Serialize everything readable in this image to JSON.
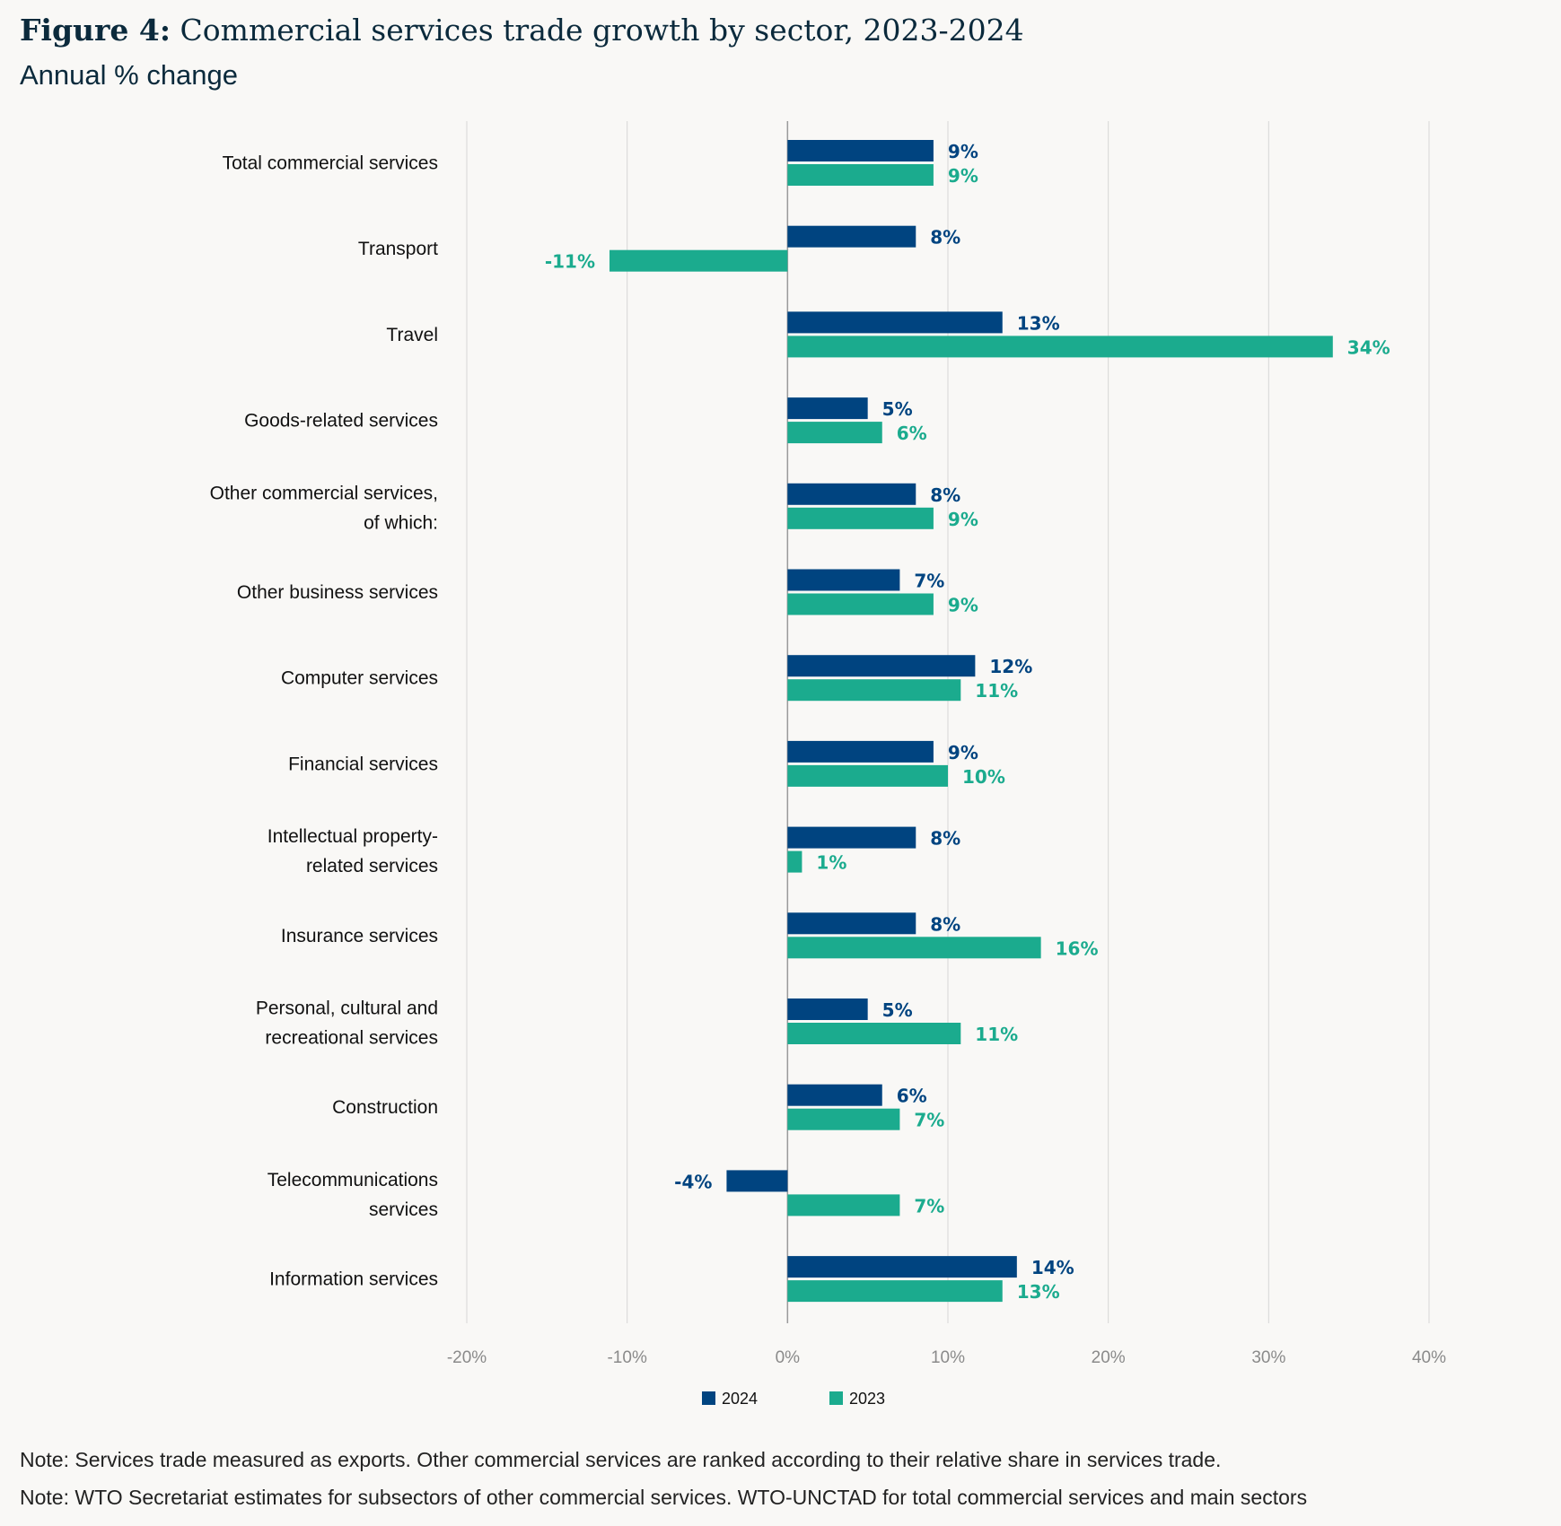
{
  "header": {
    "title_bold": "Figure 4:",
    "title_rest": " Commercial services trade growth by sector, 2023-2024",
    "subtitle": "Annual % change"
  },
  "colors": {
    "series_2024": "#004480",
    "series_2023": "#1bab8e",
    "grid": "#d6d6d6",
    "axis": "#9a9a9a"
  },
  "chart_data": {
    "type": "bar",
    "orientation": "horizontal",
    "title": "Commercial services trade growth by sector, 2023-2024",
    "subtitle": "Annual % change",
    "xlim": [
      -20,
      40
    ],
    "xticks": [
      -20,
      -10,
      0,
      10,
      20,
      30,
      40
    ],
    "xtick_labels": [
      "-20%",
      "-10%",
      "0%",
      "10%",
      "20%",
      "30%",
      "40%"
    ],
    "grid": true,
    "legend_position": "bottom-center",
    "categories": [
      [
        "Total commercial services"
      ],
      [
        "Transport"
      ],
      [
        "Travel"
      ],
      [
        "Goods-related services"
      ],
      [
        "Other commercial services,",
        "of which:"
      ],
      [
        "Other business services"
      ],
      [
        "Computer services"
      ],
      [
        "Financial services"
      ],
      [
        "Intellectual property-",
        "related services"
      ],
      [
        "Insurance services"
      ],
      [
        "Personal, cultural and",
        "recreational services"
      ],
      [
        "Construction"
      ],
      [
        "Telecommunications",
        "services"
      ],
      [
        "Information services"
      ]
    ],
    "series": [
      {
        "name": "2024",
        "values": [
          9.1,
          8.0,
          13.4,
          5.0,
          8.0,
          7.0,
          11.7,
          9.1,
          8.0,
          8.0,
          5.0,
          5.9,
          -3.8,
          14.3
        ],
        "labels": [
          "9%",
          "8%",
          "13%",
          "5%",
          "8%",
          "7%",
          "12%",
          "9%",
          "8%",
          "8%",
          "5%",
          "6%",
          "-4%",
          "14%"
        ]
      },
      {
        "name": "2023",
        "values": [
          9.1,
          -11.1,
          34.0,
          5.9,
          9.1,
          9.1,
          10.8,
          10.0,
          0.9,
          15.8,
          10.8,
          7.0,
          7.0,
          13.4
        ],
        "labels": [
          "9%",
          "-11%",
          "34%",
          "6%",
          "9%",
          "9%",
          "11%",
          "10%",
          "1%",
          "16%",
          "11%",
          "7%",
          "7%",
          "13%"
        ]
      }
    ]
  },
  "notes": [
    "Note: Services trade measured as exports. Other commercial services are ranked according to their relative share in services trade.",
    "Note: WTO Secretariat estimates for subsectors of other commercial services. WTO-UNCTAD for total commercial services and main sectors"
  ]
}
